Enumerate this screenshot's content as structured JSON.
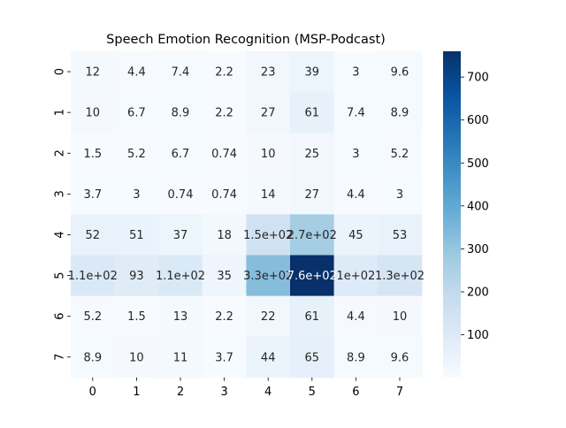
{
  "chart_data": {
    "type": "heatmap",
    "title": "Speech Emotion Recognition (MSP-Podcast)",
    "xlabel": "",
    "ylabel": "",
    "x_ticks": [
      "0",
      "1",
      "2",
      "3",
      "4",
      "5",
      "6",
      "7"
    ],
    "y_ticks": [
      "0",
      "1",
      "2",
      "3",
      "4",
      "5",
      "6",
      "7"
    ],
    "values": [
      [
        12,
        4.4,
        7.4,
        2.2,
        23,
        39,
        3,
        9.6
      ],
      [
        10,
        6.7,
        8.9,
        2.2,
        27,
        61,
        7.4,
        8.9
      ],
      [
        1.5,
        5.2,
        6.7,
        0.74,
        10,
        25,
        3,
        5.2
      ],
      [
        3.7,
        3,
        0.74,
        0.74,
        14,
        27,
        4.4,
        3
      ],
      [
        52,
        51,
        37,
        18,
        150,
        270,
        45,
        53
      ],
      [
        110,
        93,
        110,
        35,
        330,
        760,
        100,
        130
      ],
      [
        5.2,
        1.5,
        13,
        2.2,
        22,
        61,
        4.4,
        10
      ],
      [
        8.9,
        10,
        11,
        3.7,
        44,
        65,
        8.9,
        9.6
      ]
    ],
    "cell_labels": [
      [
        "12",
        "4.4",
        "7.4",
        "2.2",
        "23",
        "39",
        "3",
        "9.6"
      ],
      [
        "10",
        "6.7",
        "8.9",
        "2.2",
        "27",
        "61",
        "7.4",
        "8.9"
      ],
      [
        "1.5",
        "5.2",
        "6.7",
        "0.74",
        "10",
        "25",
        "3",
        "5.2"
      ],
      [
        "3.7",
        "3",
        "0.74",
        "0.74",
        "14",
        "27",
        "4.4",
        "3"
      ],
      [
        "52",
        "51",
        "37",
        "18",
        "1.5e+02",
        "2.7e+02",
        "45",
        "53"
      ],
      [
        "1.1e+02",
        "93",
        "1.1e+02",
        "35",
        "3.3e+02",
        "7.6e+02",
        "1e+02",
        "1.3e+02"
      ],
      [
        "5.2",
        "1.5",
        "13",
        "2.2",
        "22",
        "61",
        "4.4",
        "10"
      ],
      [
        "8.9",
        "10",
        "11",
        "3.7",
        "44",
        "65",
        "8.9",
        "9.6"
      ]
    ],
    "colormap": "Blues",
    "colorbar": {
      "min": 0.74,
      "max": 760,
      "ticks": [
        100,
        200,
        300,
        400,
        500,
        600,
        700
      ]
    },
    "grid": false,
    "colors": {
      "low": "#f7fbff",
      "high": "#08306b",
      "text_dark": "#262626",
      "text_light": "#ffffff"
    }
  }
}
